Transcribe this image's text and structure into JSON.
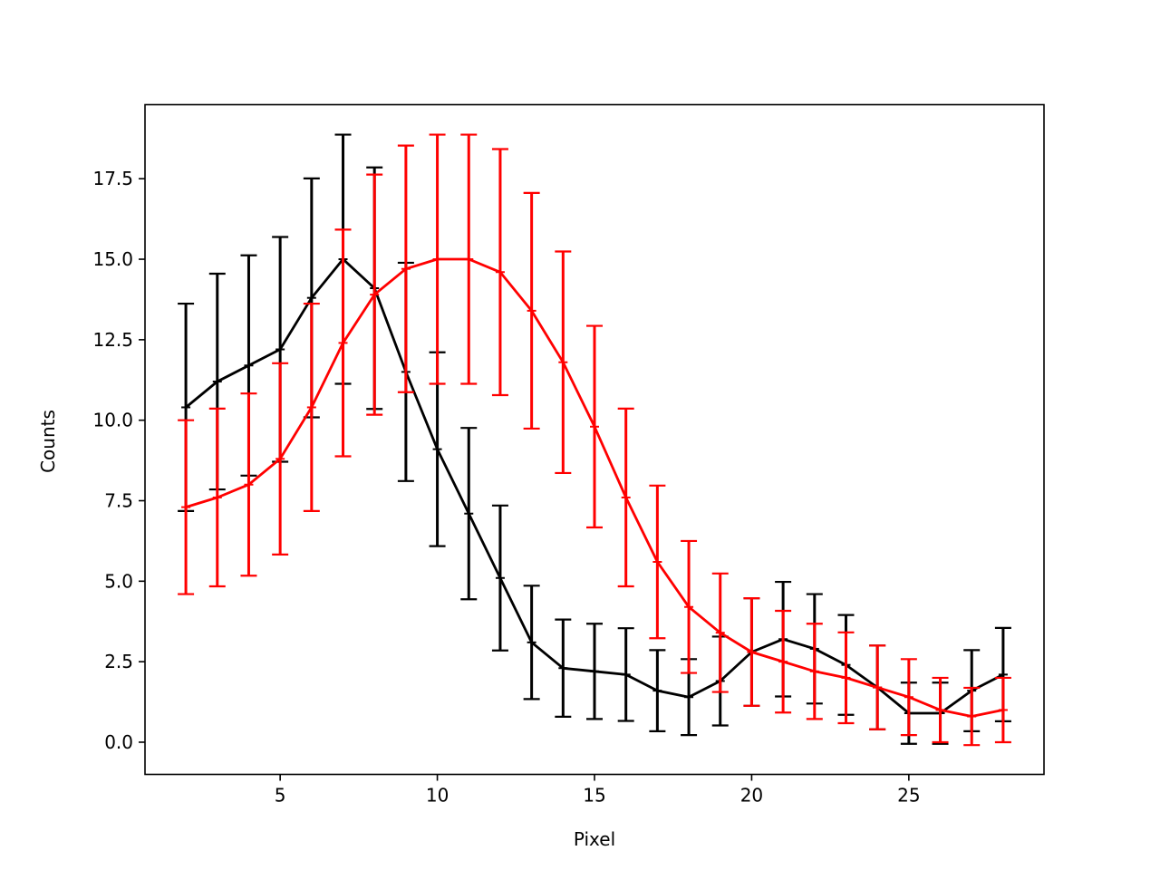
{
  "chart_data": {
    "type": "line",
    "title": "",
    "xlabel": "Pixel",
    "ylabel": "Counts",
    "xlim": [
      0.7,
      29.3
    ],
    "ylim": [
      -1.0,
      19.8
    ],
    "xticks": [
      5,
      10,
      15,
      20,
      25
    ],
    "yticks": [
      0.0,
      2.5,
      5.0,
      7.5,
      10.0,
      12.5,
      15.0,
      17.5
    ],
    "ytick_labels": [
      "0.0",
      "2.5",
      "5.0",
      "7.5",
      "10.0",
      "12.5",
      "15.0",
      "17.5"
    ],
    "xtick_labels": [
      "5",
      "10",
      "15",
      "20",
      "25"
    ],
    "grid": false,
    "legend": "none",
    "series": [
      {
        "color": "#000000",
        "x": [
          2,
          3,
          4,
          5,
          6,
          7,
          8,
          9,
          10,
          11,
          12,
          13,
          14,
          15,
          16,
          17,
          18,
          19,
          20,
          21,
          22,
          23,
          24,
          25,
          26,
          27,
          28
        ],
        "y": [
          10.4,
          11.2,
          11.7,
          12.2,
          13.8,
          15.0,
          14.1,
          11.5,
          9.1,
          7.1,
          5.1,
          3.1,
          2.3,
          2.2,
          2.1,
          1.6,
          1.4,
          1.9,
          2.8,
          3.2,
          2.9,
          2.4,
          1.7,
          0.9,
          0.9,
          1.6,
          2.1
        ],
        "yerr": [
          3.22,
          3.35,
          3.42,
          3.49,
          3.71,
          3.87,
          3.75,
          3.39,
          3.01,
          2.66,
          2.25,
          1.76,
          1.51,
          1.48,
          1.44,
          1.26,
          1.18,
          1.38,
          1.67,
          1.78,
          1.7,
          1.55,
          1.3,
          0.95,
          0.95,
          1.26,
          1.45
        ]
      },
      {
        "color": "#ff0000",
        "x": [
          2,
          3,
          4,
          5,
          6,
          7,
          8,
          9,
          10,
          11,
          12,
          13,
          14,
          15,
          16,
          17,
          18,
          19,
          20,
          21,
          22,
          23,
          24,
          25,
          26,
          27,
          28
        ],
        "y": [
          7.3,
          7.6,
          8.0,
          8.8,
          10.4,
          12.4,
          13.9,
          14.7,
          15.0,
          15.0,
          14.6,
          13.4,
          11.8,
          9.8,
          7.6,
          5.6,
          4.2,
          3.4,
          2.8,
          2.5,
          2.2,
          2.0,
          1.7,
          1.4,
          1.0,
          0.8,
          1.0
        ],
        "yerr": [
          2.7,
          2.76,
          2.83,
          2.97,
          3.22,
          3.52,
          3.73,
          3.83,
          3.87,
          3.87,
          3.82,
          3.66,
          3.44,
          3.13,
          2.76,
          2.37,
          2.05,
          1.84,
          1.67,
          1.58,
          1.48,
          1.41,
          1.3,
          1.18,
          1.0,
          0.89,
          1.0
        ]
      }
    ]
  }
}
